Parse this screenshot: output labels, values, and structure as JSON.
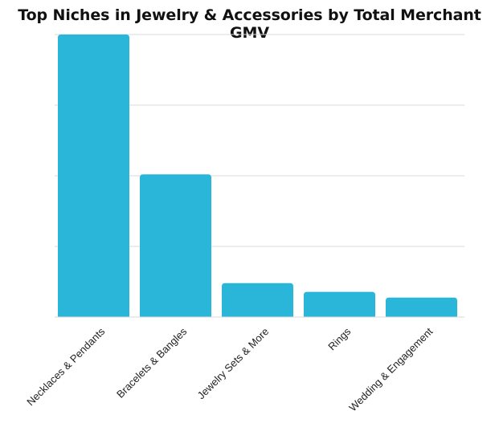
{
  "chart_data": {
    "type": "bar",
    "title": "Top Niches in Jewelry & Accessories by Total Merchant GMV",
    "categories": [
      "Necklaces & Pendants",
      "Bracelets & Bangles",
      "Jewelry Sets & More",
      "Rings",
      "Wedding & Engagement"
    ],
    "values": [
      100,
      50.5,
      12.0,
      8.9,
      6.9
    ],
    "ylim": [
      0,
      100
    ],
    "grid": true,
    "xlabel": "",
    "ylabel": "",
    "bar_color": "#29b6d8",
    "grid_color": "#d9d9d9"
  }
}
